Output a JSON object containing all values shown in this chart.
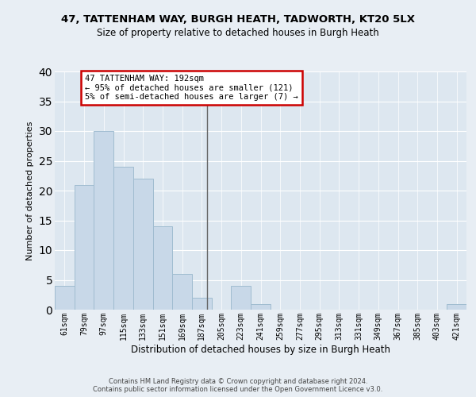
{
  "title1": "47, TATTENHAM WAY, BURGH HEATH, TADWORTH, KT20 5LX",
  "title2": "Size of property relative to detached houses in Burgh Heath",
  "xlabel": "Distribution of detached houses by size in Burgh Heath",
  "ylabel": "Number of detached properties",
  "categories": [
    "61sqm",
    "79sqm",
    "97sqm",
    "115sqm",
    "133sqm",
    "151sqm",
    "169sqm",
    "187sqm",
    "205sqm",
    "223sqm",
    "241sqm",
    "259sqm",
    "277sqm",
    "295sqm",
    "313sqm",
    "331sqm",
    "349sqm",
    "367sqm",
    "385sqm",
    "403sqm",
    "421sqm"
  ],
  "values": [
    4,
    21,
    30,
    24,
    22,
    14,
    6,
    2,
    0,
    4,
    1,
    0,
    0,
    0,
    0,
    0,
    0,
    0,
    0,
    0,
    1
  ],
  "bar_color": "#c8d8e8",
  "bar_edge_color": "#a0bcd0",
  "vline_color": "#666666",
  "annotation_text": "47 TATTENHAM WAY: 192sqm\n← 95% of detached houses are smaller (121)\n5% of semi-detached houses are larger (7) →",
  "annotation_box_color": "#ffffff",
  "annotation_box_edge": "#cc0000",
  "ylim": [
    0,
    40
  ],
  "yticks": [
    0,
    5,
    10,
    15,
    20,
    25,
    30,
    35,
    40
  ],
  "fig_background": "#e8eef4",
  "plot_background": "#dde7f0",
  "grid_color": "#ffffff",
  "footer1": "Contains HM Land Registry data © Crown copyright and database right 2024.",
  "footer2": "Contains public sector information licensed under the Open Government Licence v3.0."
}
